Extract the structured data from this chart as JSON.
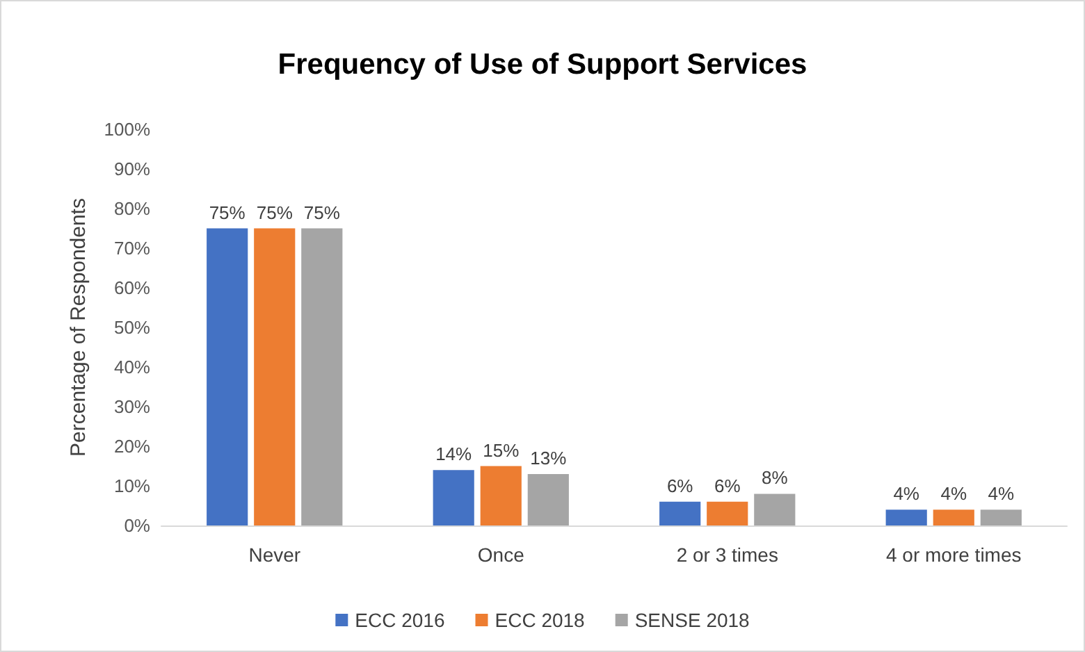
{
  "chart_data": {
    "type": "bar",
    "title": "Frequency of Use of Support Services",
    "ylabel": "Percentage of Respondents",
    "categories": [
      "Never",
      "Once",
      "2 or 3 times",
      "4 or more times"
    ],
    "series": [
      {
        "name": "ECC 2016",
        "color": "#4472c4",
        "values": [
          75,
          14,
          6,
          4
        ],
        "value_labels": [
          "75%",
          "14%",
          "6%",
          "4%"
        ]
      },
      {
        "name": "ECC 2018",
        "color": "#ed7d31",
        "values": [
          75,
          15,
          6,
          4
        ],
        "value_labels": [
          "75%",
          "15%",
          "6%",
          "4%"
        ]
      },
      {
        "name": "SENSE 2018",
        "color": "#a5a5a5",
        "values": [
          75,
          13,
          8,
          4
        ],
        "value_labels": [
          "75%",
          "13%",
          "8%",
          "4%"
        ]
      }
    ],
    "ylim": [
      0,
      100
    ],
    "yticks": [
      {
        "value": 0,
        "label": "0%"
      },
      {
        "value": 10,
        "label": "10%"
      },
      {
        "value": 20,
        "label": "20%"
      },
      {
        "value": 30,
        "label": "30%"
      },
      {
        "value": 40,
        "label": "40%"
      },
      {
        "value": 50,
        "label": "50%"
      },
      {
        "value": 60,
        "label": "60%"
      },
      {
        "value": 70,
        "label": "70%"
      },
      {
        "value": 80,
        "label": "80%"
      },
      {
        "value": 90,
        "label": "90%"
      },
      {
        "value": 100,
        "label": "100%"
      }
    ],
    "legend": "bottom"
  }
}
